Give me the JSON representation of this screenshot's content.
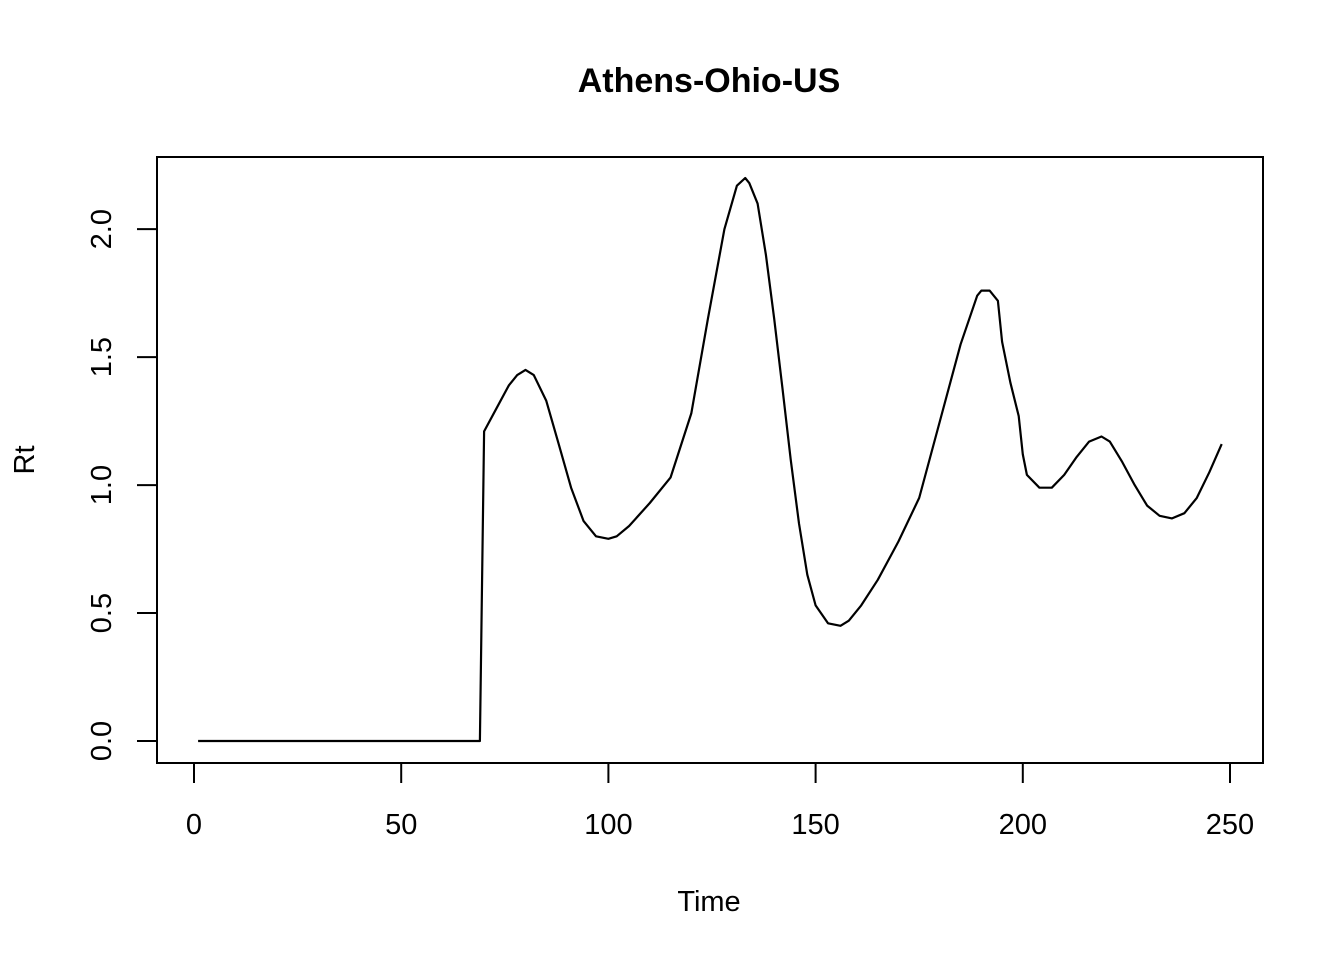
{
  "chart_data": {
    "type": "line",
    "title": "Athens-Ohio-US",
    "xlabel": "Time",
    "ylabel": "Rt",
    "xlim": [
      0,
      250
    ],
    "ylim": [
      0,
      2.2
    ],
    "x_ticks": [
      0,
      50,
      100,
      150,
      200,
      250
    ],
    "x_tick_labels": [
      "0",
      "50",
      "100",
      "150",
      "200",
      "250"
    ],
    "y_ticks": [
      0,
      0.5,
      1,
      1.5,
      2
    ],
    "y_tick_labels": [
      "0.0",
      "0.5",
      "1.0",
      "1.5",
      "2.0"
    ],
    "grid": false,
    "legend": "none",
    "series": [
      {
        "color": "#000000",
        "x": [
          1,
          20,
          40,
          60,
          69,
          70,
          73,
          76,
          78,
          80,
          82,
          85,
          88,
          91,
          94,
          97,
          100,
          102,
          105,
          110,
          115,
          120,
          124,
          128,
          131,
          133,
          134,
          136,
          138,
          140,
          142,
          144,
          146,
          148,
          150,
          153,
          156,
          158,
          161,
          165,
          170,
          175,
          180,
          185,
          189,
          190,
          192,
          194,
          195,
          197,
          199,
          200,
          201,
          204,
          207,
          210,
          213,
          216,
          219,
          221,
          224,
          227,
          230,
          233,
          236,
          239,
          242,
          245,
          248
        ],
        "y": [
          0,
          0,
          0,
          0,
          0,
          1.21,
          1.3,
          1.39,
          1.43,
          1.45,
          1.43,
          1.33,
          1.16,
          0.99,
          0.86,
          0.8,
          0.79,
          0.8,
          0.84,
          0.93,
          1.03,
          1.28,
          1.65,
          2.0,
          2.17,
          2.2,
          2.18,
          2.1,
          1.9,
          1.65,
          1.38,
          1.1,
          0.85,
          0.65,
          0.53,
          0.46,
          0.45,
          0.47,
          0.53,
          0.63,
          0.78,
          0.95,
          1.25,
          1.55,
          1.74,
          1.76,
          1.76,
          1.72,
          1.56,
          1.4,
          1.27,
          1.12,
          1.04,
          0.99,
          0.99,
          1.04,
          1.11,
          1.17,
          1.19,
          1.17,
          1.09,
          1.0,
          0.92,
          0.88,
          0.87,
          0.89,
          0.95,
          1.05,
          1.16
        ]
      }
    ]
  }
}
